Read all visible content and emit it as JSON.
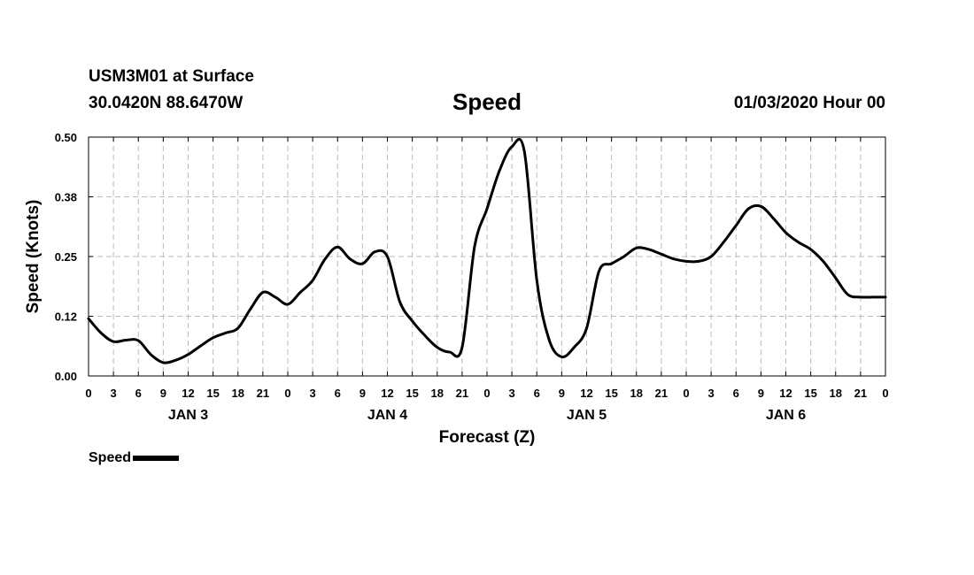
{
  "header": {
    "station": "USM3M01 at Surface",
    "coords": "30.0420N 88.6470W",
    "title": "Speed",
    "run": "01/03/2020 Hour 00"
  },
  "legend": {
    "label": "Speed"
  },
  "chart_data": {
    "type": "line",
    "title": "Speed",
    "xlabel": "Forecast (Z)",
    "ylabel": "Speed (Knots)",
    "ylim": [
      0,
      0.5
    ],
    "yticks": [
      "0.00",
      "0.12",
      "0.25",
      "0.38",
      "0.50"
    ],
    "xlim": [
      0,
      96
    ],
    "xtick_labels": [
      "0",
      "3",
      "6",
      "9",
      "12",
      "15",
      "18",
      "21",
      "0",
      "3",
      "6",
      "9",
      "12",
      "15",
      "18",
      "21",
      "0",
      "3",
      "6",
      "9",
      "12",
      "15",
      "18",
      "21",
      "0",
      "3",
      "6",
      "9",
      "12",
      "15",
      "18",
      "21",
      "0"
    ],
    "day_labels": [
      {
        "label": "JAN 3",
        "hour": 12
      },
      {
        "label": "JAN 4",
        "hour": 36
      },
      {
        "label": "JAN 5",
        "hour": 60
      },
      {
        "label": "JAN 6",
        "hour": 84
      }
    ],
    "grid": true,
    "legend_position": "bottom-left",
    "series": [
      {
        "name": "Speed",
        "color": "#000000",
        "x": [
          0,
          1.5,
          3,
          4.5,
          6,
          7.5,
          9,
          10.5,
          12,
          13.5,
          15,
          16.5,
          18,
          19.5,
          21,
          22.5,
          24,
          25.5,
          27,
          28.5,
          30,
          31.5,
          33,
          34.5,
          36,
          37.5,
          39,
          40.5,
          42,
          43.5,
          45,
          46.5,
          48,
          49.5,
          51,
          52.5,
          54,
          55.5,
          57,
          58.5,
          60,
          61.5,
          63,
          64.5,
          66,
          67.5,
          69,
          70.5,
          72,
          73.5,
          75,
          76.5,
          78,
          79.5,
          81,
          82.5,
          84,
          85.5,
          87,
          88.5,
          90,
          91.5,
          93,
          94.5,
          96
        ],
        "values": [
          0.12,
          0.09,
          0.072,
          0.075,
          0.074,
          0.045,
          0.028,
          0.033,
          0.045,
          0.063,
          0.08,
          0.09,
          0.1,
          0.14,
          0.175,
          0.165,
          0.15,
          0.175,
          0.2,
          0.245,
          0.27,
          0.245,
          0.235,
          0.26,
          0.25,
          0.155,
          0.115,
          0.085,
          0.06,
          0.05,
          0.06,
          0.27,
          0.35,
          0.43,
          0.48,
          0.47,
          0.2,
          0.075,
          0.04,
          0.06,
          0.1,
          0.22,
          0.235,
          0.25,
          0.268,
          0.265,
          0.255,
          0.245,
          0.24,
          0.24,
          0.25,
          0.28,
          0.315,
          0.35,
          0.355,
          0.33,
          0.3,
          0.28,
          0.265,
          0.24,
          0.205,
          0.17,
          0.165,
          0.165,
          0.165
        ]
      }
    ]
  }
}
